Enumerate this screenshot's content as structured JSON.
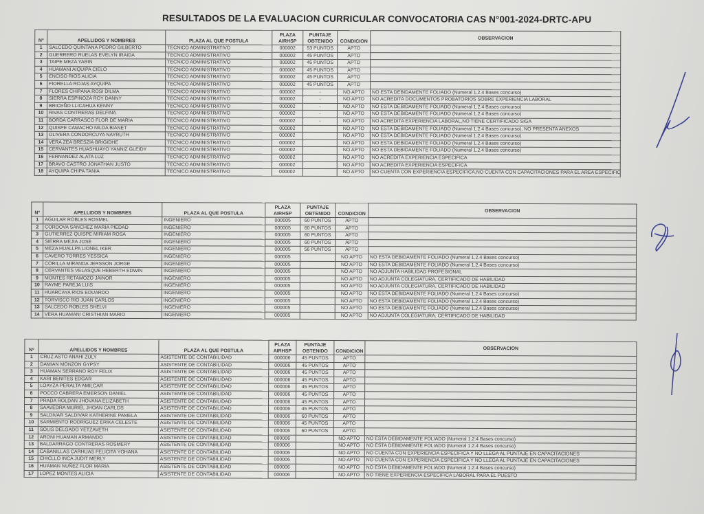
{
  "title": "RESULTADOS DE LA EVALUACION CURRICULAR  CONVOCATORIA CAS N°001-2024-DRTC-APU",
  "headers": {
    "num": "Nº",
    "name": "APELLIDOS Y NOMBRES",
    "plaza": "PLAZA AL QUE POSTULA",
    "airhsp": "PLAZA AIRHSP",
    "puntaje": "PUNTAJE OBTENIDO",
    "condicion": "CONDICION",
    "observacion": "OBSERVACION"
  },
  "tables": [
    {
      "rows": [
        [
          "1",
          "SALCEDO QUINTANA PEDRO GILBERTO",
          "TECNICO ADMINISTRATIVO",
          "000002",
          "53 PUNTOS",
          "APTO",
          ""
        ],
        [
          "2",
          "GUERRERO RUELAS EVELYN IRAIDA",
          "TECNICO ADMINISTRATIVO",
          "000002",
          "45 PUNTOS",
          "APTO",
          ""
        ],
        [
          "3",
          "TAIPE MEZA YARIN",
          "TECNICO ADMINISTRATIVO",
          "000002",
          "45 PUNTOS",
          "APTO",
          ""
        ],
        [
          "4",
          "HUAMANI AIQUIPA CIELO",
          "TECNICO ADMINISTRATIVO",
          "000002",
          "45 PUNTOS",
          "APTO",
          ""
        ],
        [
          "5",
          "ENCISO RIOS ALICIA",
          "TECNICO ADMINISTRATIVO",
          "000002",
          "45 PUNTOS",
          "APTO",
          ""
        ],
        [
          "6",
          "FIORELLA  ROJAS AYQUIPA",
          "TECNICO ADMINISTRATIVO",
          "000002",
          "45 PUNTOS",
          "APTO",
          ""
        ],
        [
          "7",
          "FLORES CHIPANA ROSI DILMA",
          "TECNICO ADMINISTRATIVO",
          "000002",
          "-",
          "NO APTO",
          "NO ESTA DEBIDAMENTE FOLIADO (Numeral 1.2.4 Bases concurso)"
        ],
        [
          "8",
          "SIERRA ESPINOZA ROY DANNY",
          "TECNICO ADMINISTRATIVO",
          "000002",
          "-",
          "NO APTO",
          "NO ACREDITA DOCUMENTOS PROBATORIOS SOBRE EXPERIENCIA LABORAL"
        ],
        [
          "9",
          "BRICEÑO LLICAHUA KENNY",
          "TECNICO ADMINISTRATIVO",
          "000002",
          "-",
          "NO APTO",
          "NO ESTA DEBIDAMENTE FOLIADO (Numeral 1.2.4 Bases concurso)"
        ],
        [
          "10",
          "RIVAS CONTRERAS DELFINA",
          "TECNICO ADMINISTRATIVO",
          "000002",
          "-",
          "NO APTO",
          "NO ESTA DEBIDAMENTE FOLIADO (Numeral 1.2.4 Bases concurso)"
        ],
        [
          "11",
          "BORDA CARRASCO FLOR DE MARIA",
          "TECNICO ADMINISTRATIVO",
          "000002",
          "-",
          "NO APTO",
          "NO ACREDITA EXPERIENCIA LABORAL,NO TIENE CERTIFICADO SIGA"
        ],
        [
          "12",
          "QUISPE CAMACHO NILDA BIANET",
          "TECNICO ADMINISTRATIVO",
          "000002",
          "",
          "NO APTO",
          "NO ESTA DEBIDAMENTE FOLIADO (Numeral 1.2.4 Bases concurso), NO PRESENTA ANEXOS"
        ],
        [
          "13",
          "OLIVERA CONDORCUYA NAYRUTH",
          "TECNICO ADMINISTRATIVO",
          "000002",
          "",
          "NO APTO",
          "NO ESTA DEBIDAMENTE FOLIADO (Numeral 1.2.4 Bases concurso)"
        ],
        [
          "14",
          "VERA ZEA BRESZIA BRIGIDHE",
          "TECNICO ADMINISTRATIVO",
          "000002",
          "",
          "NO APTO",
          "NO ESTA DEBIDAMENTE FOLIADO (Numeral 1.2.4 Bases concurso)"
        ],
        [
          "15",
          "CERVANTES HUASHUAYO YANNIZ GLEIDY",
          "TECNICO ADMINISTRATIVO",
          "000002",
          "",
          "NO APTO",
          "NO ESTA DEBIDAMENTE FOLIADO (Numeral 1.2.4 Bases concurso)"
        ],
        [
          "16",
          "FERNANDEZ ALATA LUZ",
          "TECNICO ADMINISTRATIVO",
          "000002",
          "",
          "NO APTO",
          "NO ACREDITA EXPERIENCIA ESPECIFICA"
        ],
        [
          "17",
          "BRAVO CASTRO JONATHAN JUSTO",
          "TECNICO ADMINISTRATIVO",
          "000002",
          "",
          "NO APTO",
          "NO ACREDITA EXPERIENCIA ESPECIFICA"
        ],
        [
          "18",
          "AYQUIPA CHIPA TANIA",
          "TECNICO ADMINISTRATIVO",
          "000002",
          "",
          "NO APTO",
          "NO CUENTA CON EXPERIENCIA ESPECIFICA,NO CUENTA CON CAPACITACIONES PARA EL AREA ESPECIFICA"
        ]
      ]
    },
    {
      "rows": [
        [
          "1",
          "AGUILAR ROBLES ROSMEL",
          "INGENIERO",
          "000005",
          "60 PUNTOS",
          "APTO",
          ""
        ],
        [
          "2",
          "CORDOVA SANCHEZ MARIA PIEDAD",
          "INGENIERO",
          "000005",
          "60 PUNTOS",
          "APTO",
          ""
        ],
        [
          "3",
          "GUTIERREZ QUISPE MIRIAM ROSA",
          "INGENIERO",
          "000005",
          "60 PUNTOS",
          "APTO",
          ""
        ],
        [
          "4",
          "SIERRA MEJIA JOSÉ",
          "INGENIERO",
          "000005",
          "60 PUNTOS",
          "APTO",
          ""
        ],
        [
          "5",
          "MEZA HUALLPA LIONEL IKER",
          "INGENIERO",
          "000005",
          "56 PUNTOS",
          "APTO",
          ""
        ],
        [
          "6",
          "CAVERO TORRES YESSICA",
          "INGENIERO",
          "000005",
          "",
          "NO APTO",
          "NO ESTA DEBIDAMENTE FOLIADO (Numeral 1.2.4 Bases concurso)"
        ],
        [
          "7",
          "CORILLA MIRANDA JERSSON JORGE",
          "INGENIERO",
          "000005",
          "",
          "NO APTO",
          "NO ESTA DEBIDAMENTE FOLIADO (Numeral 1.2.4 Bases concurso)"
        ],
        [
          "8",
          "CERVANTES VELASQUE HEBERTH EDWIN",
          "INGENIERO",
          "000005",
          "",
          "NO APTO",
          "NO ADJUNTA HABILIDAD PROFESIONAL"
        ],
        [
          "9",
          "MONTES RETAMOZO JAINOR",
          "INGENIERO",
          "000005",
          "",
          "NO APTO",
          "NO ADJUNTA COLEGIATURA, CERTIFICADO DE HABILIDAD"
        ],
        [
          "10",
          "RAYME PAREJA LUIS",
          "INGENIERO",
          "000005",
          "",
          "NO APTO",
          "NO ADJUNTA COLEGIATURA, CERTIFICADO DE HABILIDAD"
        ],
        [
          "11",
          "HUARCAYA RIOS EDUARDO",
          "INGENIERO",
          "000005",
          "",
          "NO APTO",
          "NO ESTA DEBIDAMENTE FOLIADO (Numeral 1.2.4 Bases concurso)"
        ],
        [
          "12",
          "TORVISCO RIO JUAN CARLOS",
          "INGENIERO",
          "000005",
          "",
          "NO APTO",
          "NO ESTA DEBIDAMENTE FOLIADO (Numeral 1.2.4 Bases concurso)"
        ],
        [
          "13",
          "SALCEDO ROBLES SHELVI",
          "INGENIERO",
          "000005",
          "",
          "NO APTO",
          "NO ESTA DEBIDAMENTE FOLIADO (Numeral 1.2.4 Bases concurso)"
        ],
        [
          "14",
          "VERA HUAMANI CRISTHIAN MARIO",
          "INGENIERO",
          "000005",
          "",
          "NO APTO",
          "NO ADJUNTA COLEGIATURA, CERTIFICADO DE HABILIDAD"
        ]
      ]
    },
    {
      "rows": [
        [
          "1",
          "CRUZ ASTO ANAHI ZULY",
          "ASISTENTE DE CONTABILIDAD",
          "000006",
          "45 PUNTOS",
          "APTO",
          ""
        ],
        [
          "2",
          "DAMIAN MONZON GYPSY",
          "ASISTENTE DE CONTABILIDAD",
          "000006",
          "45 PUNTOS",
          "APTO",
          ""
        ],
        [
          "3",
          "HUAMAN SERRANO ROY FELIX",
          "ASISTENTE DE CONTABILIDAD",
          "000006",
          "45 PUNTOS",
          "APTO",
          ""
        ],
        [
          "4",
          "KARI BENITES EDGAR",
          "ASISTENTE DE CONTABILIDAD",
          "000006",
          "45 PUNTOS",
          "APTO",
          ""
        ],
        [
          "5",
          "LOAYZA PERALTA AMILCAR",
          "ASISTENTE DE CONTABILIDAD",
          "000006",
          "45 PUNTOS",
          "APTO",
          ""
        ],
        [
          "6",
          "POCCO CABRERA EMERSON DANIEL",
          "ASISTENTE DE CONTABILIDAD",
          "000006",
          "45 PUNTOS",
          "APTO",
          ""
        ],
        [
          "7",
          "PRADA ROLDAN JHOVANA ELIZABETH",
          "ASISTENTE DE CONTABILIDAD",
          "000006",
          "45 PUNTOS",
          "APTO",
          ""
        ],
        [
          "8",
          "SAAVEDRA MURIEL JHOAN CARLOS",
          "ASISTENTE DE CONTABILIDAD",
          "000006",
          "45 PUNTOS",
          "APTO",
          ""
        ],
        [
          "9",
          "SALDIVAR SALDIVAR KATHERINE PAMELA",
          "ASISTENTE DE CONTABILIDAD",
          "000006",
          "60 PUNTOS",
          "APTO",
          ""
        ],
        [
          "10",
          "SARMIENTO RODRIGUEZ ERIKA CELESTE",
          "ASISTENTE DE CONTABILIDAD",
          "000006",
          "45 PUNTOS",
          "APTO",
          ""
        ],
        [
          "11",
          "SOLIS DELGADO YETZAVETH",
          "ASISTENTE DE CONTABILIDAD",
          "000006",
          "60 PUNTOS",
          "APTO",
          ""
        ],
        [
          "12",
          "ARONI HUAMAN ARMANDO",
          "ASISTENTE DE CONTABILIDAD",
          "000006",
          "",
          "NO APTO",
          "NO ESTA DEBIDAMENTE FOLIADO (Numeral 1.2.4 Bases concurso)"
        ],
        [
          "13",
          "BALDARRAGO CONTRERAS ROSMERY",
          "ASISTENTE DE CONTABILIDAD",
          "000006",
          "",
          "NO APTO",
          "NO ESTA DEBIDAMENTE FOLIADO (Numeral 1.2.4 Bases concurso)"
        ],
        [
          "14",
          "CABANILLAS CARHUAS FELICITA YOHANA",
          "ASISTENTE DE CONTABILIDAD",
          "000006",
          "",
          "NO APTO",
          "NO CUENTA CON EXPERIENCIA ESPECIFICA Y NO LLEGA AL PUNTAJE EN  CAPACITACIONES"
        ],
        [
          "15",
          "CHICLLO INCA JUDIT MERLY",
          "ASISTENTE DE CONTABILIDAD",
          "000006",
          "",
          "NO APTO",
          "NO CUENTA CON EXPERIENCIA ESPECIFICA Y NO LLEGA AL PUNTAJE EN  CAPACITACIONES"
        ],
        [
          "16",
          "HUAMAN NUÑEZ FLOR MARIA",
          "ASISTENTE DE CONTABILIDAD",
          "000006",
          "",
          "NO APTO",
          "NO ESTA DEBIDAMENTE FOLIADO (Numeral 1.2.4 Bases concurso)"
        ],
        [
          "17",
          "LOPEZ MONTES ALICIA",
          "ASISTENTE DE CONTABILIDAD",
          "000006",
          "",
          "NO APTO",
          "NO TIENE EXPERIENCIA ESPECIFICA LABORAL PARA EL PUESTO"
        ]
      ]
    }
  ],
  "signatures": [
    "handwritten-signature-1",
    "handwritten-signature-2",
    "handwritten-signature-3"
  ]
}
